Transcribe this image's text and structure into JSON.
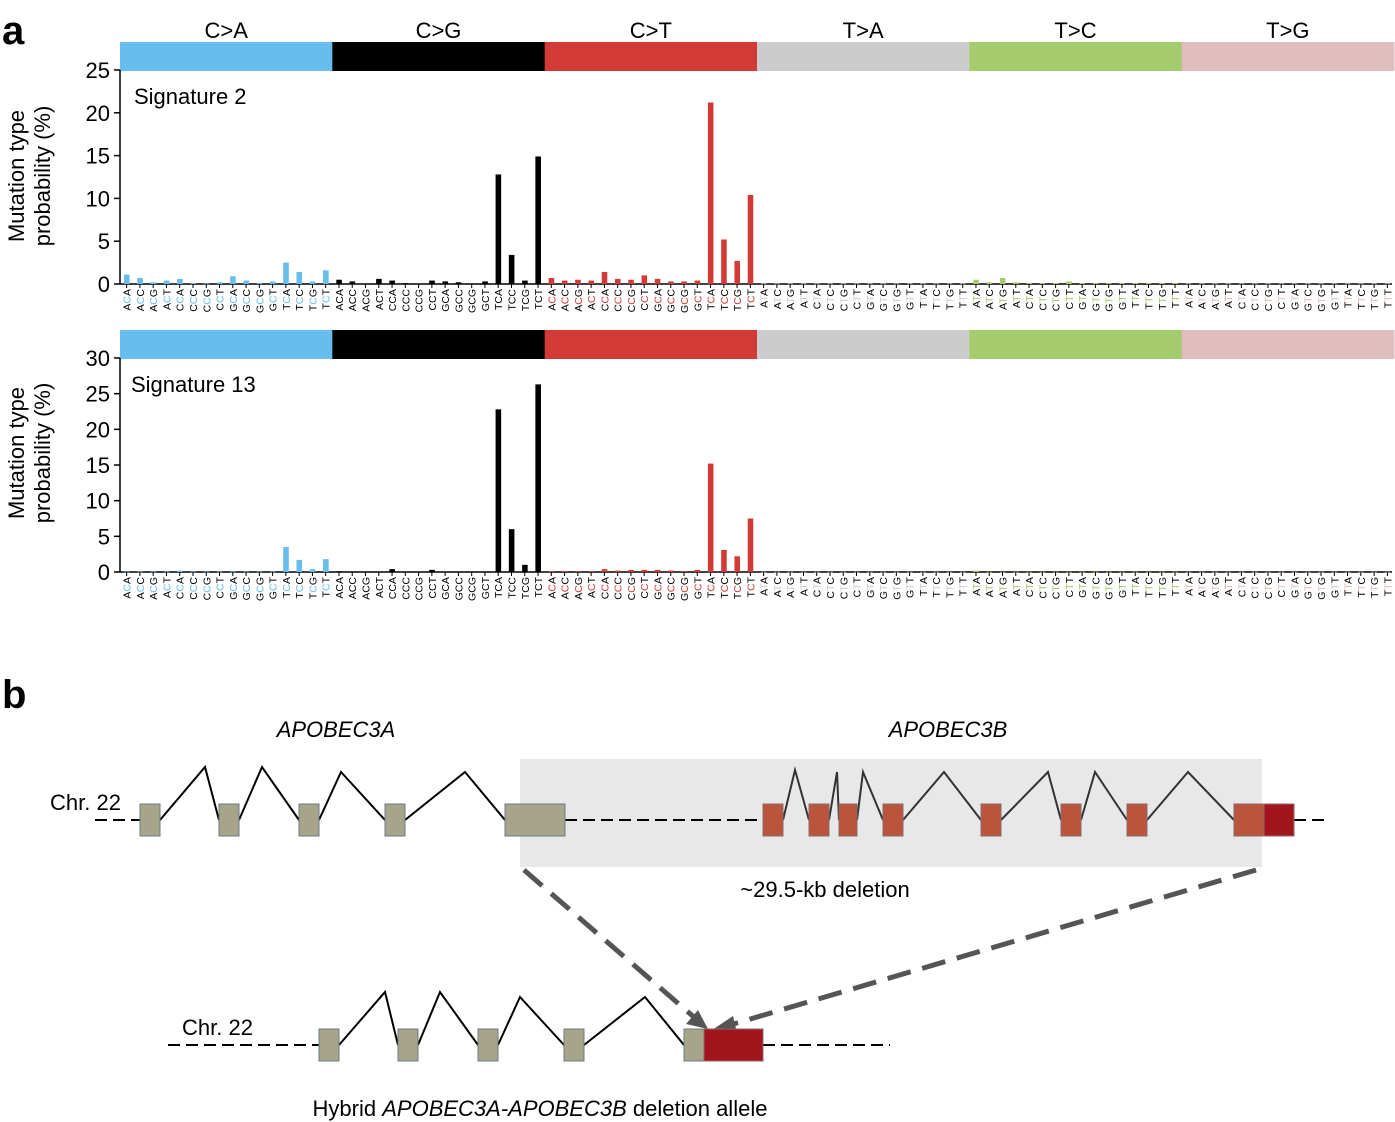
{
  "panel_a_letter": "a",
  "panel_b_letter": "b",
  "chart_data": [
    {
      "type": "bar",
      "title": "Signature 2",
      "ylabel": "Mutation type probability (%)",
      "ylim": [
        0,
        25
      ],
      "yticks": [
        0,
        5,
        10,
        15,
        20,
        25
      ],
      "mutation_classes": [
        "C>A",
        "C>G",
        "C>T",
        "T>A",
        "T>C",
        "T>G"
      ],
      "class_colors": [
        "#66bdee",
        "#000000",
        "#d23a35",
        "#cccccc",
        "#a5cc6c",
        "#e0bdbd"
      ],
      "contexts": [
        "ACA",
        "ACC",
        "ACG",
        "ACT",
        "CCA",
        "CCC",
        "CCG",
        "CCT",
        "GCA",
        "GCC",
        "GCG",
        "GCT",
        "TCA",
        "TCC",
        "TCG",
        "TCT",
        "ATA",
        "ATC",
        "ATG",
        "ATT",
        "CTA",
        "CTC",
        "CTG",
        "CTT",
        "GTA",
        "GTC",
        "GTG",
        "GTT",
        "TTA",
        "TTC",
        "TTG",
        "TTT"
      ],
      "series": [
        {
          "values": [
            1.1,
            0.7,
            0.2,
            0.4,
            0.6,
            0.1,
            0.05,
            0.2,
            0.9,
            0.4,
            0.1,
            0.3,
            2.5,
            1.4,
            0.3,
            1.6
          ]
        },
        {
          "values": [
            0.5,
            0.3,
            0.05,
            0.6,
            0.4,
            0.1,
            0.05,
            0.4,
            0.3,
            0.2,
            0.05,
            0.3,
            12.8,
            3.4,
            0.4,
            14.9
          ]
        },
        {
          "values": [
            0.7,
            0.4,
            0.5,
            0.4,
            1.4,
            0.6,
            0.5,
            1.0,
            0.6,
            0.3,
            0.3,
            0.4,
            21.2,
            5.2,
            2.7,
            10.4
          ]
        },
        {
          "values": [
            0.05,
            0.05,
            0.05,
            0.05,
            0.05,
            0.05,
            0.05,
            0.05,
            0.05,
            0.05,
            0.05,
            0.05,
            0.05,
            0.05,
            0.05,
            0.05
          ]
        },
        {
          "values": [
            0.5,
            0.2,
            0.7,
            0.2,
            0.1,
            0.1,
            0.1,
            0.3,
            0.1,
            0.1,
            0.1,
            0.1,
            0.1,
            0.1,
            0.1,
            0.1
          ]
        },
        {
          "values": [
            0.05,
            0.05,
            0.05,
            0.05,
            0.05,
            0.05,
            0.05,
            0.05,
            0.05,
            0.05,
            0.05,
            0.05,
            0.05,
            0.05,
            0.05,
            0.05
          ]
        }
      ]
    },
    {
      "type": "bar",
      "title": "Signature 13",
      "ylabel": "Mutation type probability (%)",
      "ylim": [
        0,
        30
      ],
      "yticks": [
        0,
        5,
        10,
        15,
        20,
        25,
        30
      ],
      "mutation_classes": [
        "C>A",
        "C>G",
        "C>T",
        "T>A",
        "T>C",
        "T>G"
      ],
      "class_colors": [
        "#66bdee",
        "#000000",
        "#d23a35",
        "#cccccc",
        "#a5cc6c",
        "#e0bdbd"
      ],
      "contexts": [
        "ACA",
        "ACC",
        "ACG",
        "ACT",
        "CCA",
        "CCC",
        "CCG",
        "CCT",
        "GCA",
        "GCC",
        "GCG",
        "GCT",
        "TCA",
        "TCC",
        "TCG",
        "TCT",
        "ATA",
        "ATC",
        "ATG",
        "ATT",
        "CTA",
        "CTC",
        "CTG",
        "CTT",
        "GTA",
        "GTC",
        "GTG",
        "GTT",
        "TTA",
        "TTC",
        "TTG",
        "TTT"
      ],
      "series": [
        {
          "values": [
            0.05,
            0.05,
            0.05,
            0.05,
            0.2,
            0.05,
            0.05,
            0.05,
            0.05,
            0.05,
            0.05,
            0.05,
            3.5,
            1.7,
            0.4,
            1.8
          ]
        },
        {
          "values": [
            0.1,
            0.05,
            0.05,
            0.05,
            0.4,
            0.05,
            0.05,
            0.3,
            0.05,
            0.05,
            0.05,
            0.05,
            22.8,
            6.0,
            1.0,
            26.3
          ]
        },
        {
          "values": [
            0.1,
            0.1,
            0.1,
            0.1,
            0.4,
            0.2,
            0.3,
            0.3,
            0.3,
            0.2,
            0.1,
            0.3,
            15.2,
            3.1,
            2.2,
            7.5
          ]
        },
        {
          "values": [
            0.02,
            0.02,
            0.02,
            0.02,
            0.02,
            0.02,
            0.02,
            0.02,
            0.02,
            0.02,
            0.02,
            0.02,
            0.02,
            0.02,
            0.02,
            0.02
          ]
        },
        {
          "values": [
            0.2,
            0.02,
            0.02,
            0.02,
            0.02,
            0.02,
            0.02,
            0.02,
            0.02,
            0.02,
            0.02,
            0.02,
            0.02,
            0.02,
            0.02,
            0.02
          ]
        },
        {
          "values": [
            0.02,
            0.02,
            0.02,
            0.02,
            0.02,
            0.02,
            0.02,
            0.02,
            0.02,
            0.02,
            0.02,
            0.02,
            0.02,
            0.02,
            0.02,
            0.02
          ]
        }
      ]
    }
  ],
  "diagram": {
    "gene_a": "APOBEC3A",
    "gene_b": "APOBEC3B",
    "chromosome_label": "Chr. 22",
    "deletion_label": "~29.5-kb deletion",
    "hybrid_prefix": "Hybrid ",
    "hybrid_gene": "APOBEC3A-APOBEC3B",
    "hybrid_suffix": " deletion allele",
    "colors": {
      "a3a_exon": "#a6a58a",
      "a3b_exon": "#b8553a",
      "a3b_last": "#a3151c",
      "deletion_box": "#e8e8e8"
    }
  }
}
